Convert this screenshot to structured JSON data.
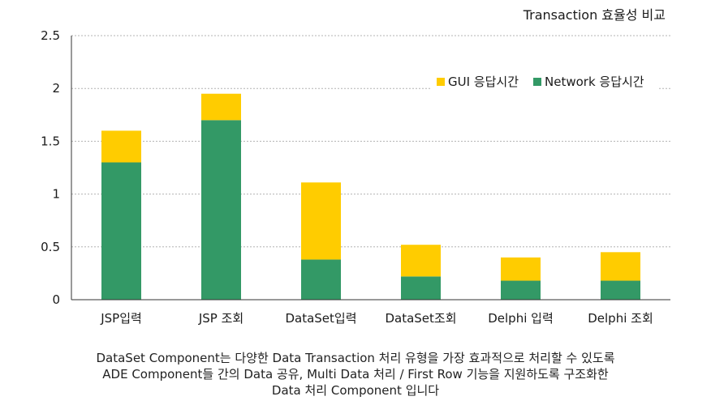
{
  "chart_data": {
    "type": "bar",
    "stacked": true,
    "title": "Transaction 효율성 비교",
    "categories": [
      "JSP입력",
      "JSP 조회",
      "DataSet입력",
      "DataSet조회",
      "Delphi 입력",
      "Delphi 조회"
    ],
    "series": [
      {
        "name": "Network 응답시간",
        "color": "#339966",
        "values": [
          1.3,
          1.7,
          0.38,
          0.22,
          0.18,
          0.18
        ]
      },
      {
        "name": "GUI 응답시간",
        "color": "#ffcc00",
        "values": [
          0.3,
          0.25,
          0.73,
          0.3,
          0.22,
          0.27
        ]
      }
    ],
    "ylim": [
      0,
      2.5
    ],
    "yticks": [
      "0",
      "0.5",
      "1",
      "1.5",
      "2",
      "2.5"
    ],
    "grid": "dashed horizontal",
    "legend": "top-right"
  },
  "caption": [
    "DataSet Component는 다양한 Data Transaction 처리 유형을 가장 효과적으로 처리할 수 있도록",
    "ADE Component들 간의 Data 공유, Multi Data 처리 / First Row 기능을 지원하도록 구조화한",
    "Data 처리 Component 입니다"
  ]
}
